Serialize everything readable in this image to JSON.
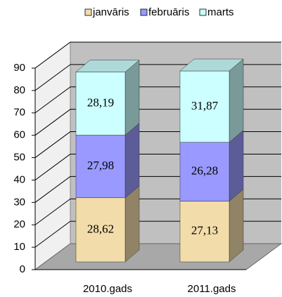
{
  "chart_data": {
    "type": "bar3d_stacked",
    "categories": [
      "2010.gads",
      "2011.gads"
    ],
    "series": [
      {
        "name": "janvāris",
        "color": "#f2dcaa",
        "values": [
          28.62,
          27.13
        ],
        "value_labels": [
          "28,62",
          "27,13"
        ]
      },
      {
        "name": "februāris",
        "color": "#9999ff",
        "values": [
          27.98,
          26.28
        ],
        "value_labels": [
          "27,98",
          "26,28"
        ]
      },
      {
        "name": "marts",
        "color": "#ccffff",
        "values": [
          28.19,
          31.87
        ],
        "value_labels": [
          "28,19",
          "31,87"
        ]
      }
    ],
    "ylim": [
      0,
      90
    ],
    "yticks": [
      0,
      10,
      20,
      30,
      40,
      50,
      60,
      70,
      80,
      90
    ],
    "grid": true,
    "legend": "top"
  }
}
